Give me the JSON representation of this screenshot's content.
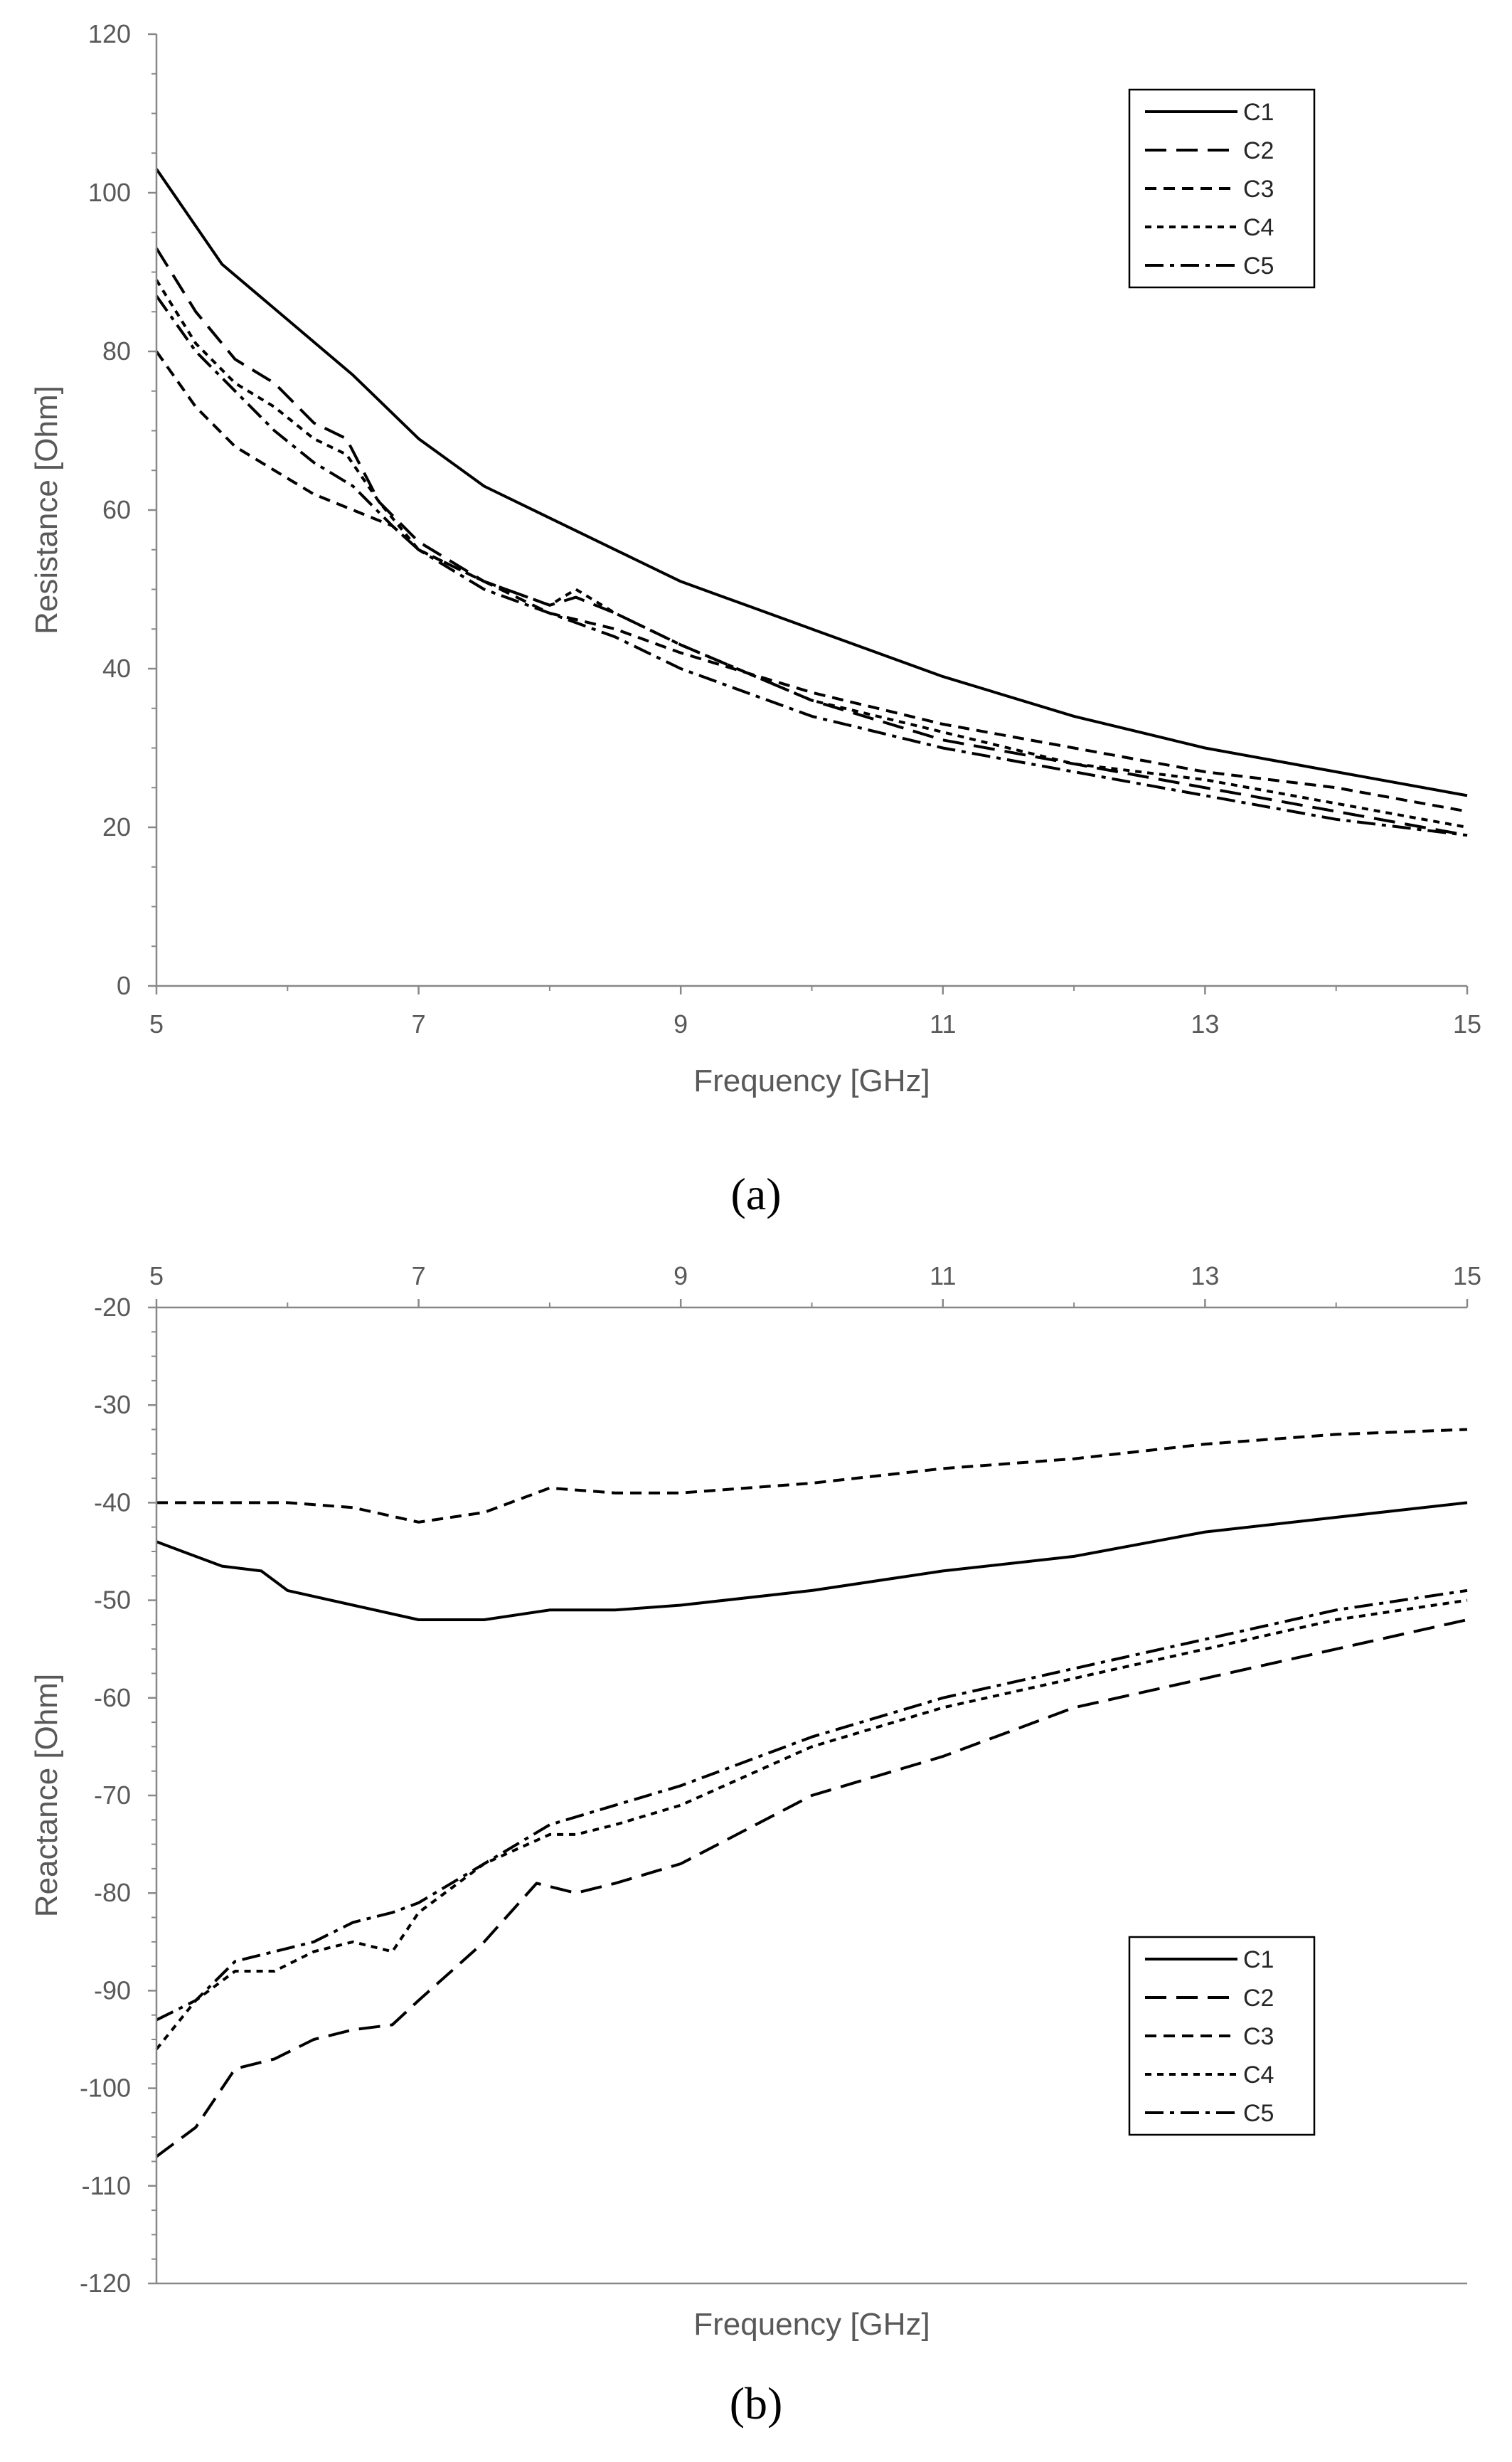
{
  "chart_data": [
    {
      "type": "line",
      "panel_label": "a",
      "title": "",
      "xlabel": "Frequency [GHz]",
      "ylabel": "Resistance [Ohm]",
      "xlim": [
        5,
        15
      ],
      "ylim": [
        0,
        120
      ],
      "xticks": [
        5,
        7,
        9,
        11,
        13,
        15
      ],
      "yticks": [
        0,
        20,
        40,
        60,
        80,
        100,
        120
      ],
      "x_axis_position": "bottom",
      "grid": false,
      "legend_position": "top-right",
      "series": [
        {
          "name": "C1",
          "dash": "solid",
          "x": [
            5,
            5.5,
            6,
            6.5,
            7,
            7.5,
            8,
            8.5,
            9,
            9.5,
            10,
            11,
            12,
            13,
            14,
            15
          ],
          "y": [
            103,
            91,
            84,
            77,
            69,
            63,
            59,
            55,
            51,
            48,
            45,
            39,
            34,
            30,
            27,
            24
          ]
        },
        {
          "name": "C2",
          "dash": "long",
          "x": [
            5,
            5.3,
            5.6,
            5.9,
            6.2,
            6.45,
            6.7,
            7,
            7.5,
            8,
            8.2,
            8.5,
            9,
            10,
            11,
            12,
            13,
            14,
            15
          ],
          "y": [
            93,
            85,
            79,
            76,
            71,
            69,
            61,
            56,
            51,
            48,
            49,
            47,
            43,
            36,
            31,
            28,
            25,
            22,
            19
          ]
        },
        {
          "name": "C3",
          "dash": "short",
          "x": [
            5,
            5.3,
            5.6,
            5.9,
            6.2,
            6.5,
            6.8,
            7,
            7.5,
            8,
            8.5,
            9,
            10,
            11,
            12,
            13,
            14,
            15
          ],
          "y": [
            80,
            73,
            68,
            65,
            62,
            60,
            58,
            55,
            51,
            47,
            45,
            42,
            37,
            33,
            30,
            27,
            25,
            22
          ]
        },
        {
          "name": "C4",
          "dash": "dot",
          "x": [
            5,
            5.3,
            5.6,
            5.9,
            6.2,
            6.45,
            6.7,
            7,
            7.5,
            8,
            8.2,
            8.5,
            9,
            10,
            11,
            12,
            13,
            14,
            15
          ],
          "y": [
            89,
            81,
            76,
            73,
            69,
            67,
            61,
            55,
            51,
            48,
            50,
            47,
            43,
            36,
            32,
            28,
            26,
            23,
            20
          ]
        },
        {
          "name": "C5",
          "dash": "dashdot",
          "x": [
            5,
            5.3,
            5.6,
            5.9,
            6.2,
            6.5,
            6.8,
            7,
            7.5,
            8,
            8.5,
            9,
            10,
            11,
            12,
            13,
            14,
            15
          ],
          "y": [
            87,
            80,
            75,
            70,
            66,
            63,
            58,
            55,
            50,
            47,
            44,
            40,
            34,
            30,
            27,
            24,
            21,
            19
          ]
        }
      ]
    },
    {
      "type": "line",
      "panel_label": "b",
      "title": "",
      "xlabel": "Frequency [GHz]",
      "ylabel": "Reactance [Ohm]",
      "xlim": [
        5,
        15
      ],
      "ylim": [
        -120,
        -20
      ],
      "xticks": [
        5,
        7,
        9,
        11,
        13,
        15
      ],
      "yticks": [
        -120,
        -110,
        -100,
        -90,
        -80,
        -70,
        -60,
        -50,
        -40,
        -30,
        -20
      ],
      "x_axis_position": "top",
      "grid": false,
      "legend_position": "bottom-right",
      "series": [
        {
          "name": "C1",
          "dash": "solid",
          "x": [
            5,
            5.5,
            5.8,
            6,
            6.5,
            7,
            7.5,
            8,
            8.5,
            9,
            10,
            11,
            12,
            13,
            14,
            15
          ],
          "y": [
            -44,
            -46.5,
            -47,
            -49,
            -50.5,
            -52,
            -52,
            -51,
            -51,
            -50.5,
            -49,
            -47,
            -45.5,
            -43,
            -41.5,
            -40
          ]
        },
        {
          "name": "C2",
          "dash": "long",
          "x": [
            5,
            5.3,
            5.6,
            5.9,
            6.2,
            6.5,
            6.8,
            7,
            7.5,
            7.9,
            8.2,
            8.5,
            9,
            10,
            11,
            12,
            13,
            14,
            15
          ],
          "y": [
            -107,
            -104,
            -98,
            -97,
            -95,
            -94,
            -93.5,
            -91,
            -85,
            -79,
            -80,
            -79,
            -77,
            -70,
            -66,
            -61,
            -58,
            -55,
            -52
          ]
        },
        {
          "name": "C3",
          "dash": "short",
          "x": [
            5,
            5.5,
            6,
            6.5,
            7,
            7.5,
            8,
            8.5,
            9,
            10,
            11,
            12,
            13,
            14,
            15
          ],
          "y": [
            -40,
            -40,
            -40,
            -40.5,
            -42,
            -41,
            -38.5,
            -39,
            -39,
            -38,
            -36.5,
            -35.5,
            -34,
            -33,
            -32.5
          ]
        },
        {
          "name": "C4",
          "dash": "dot",
          "x": [
            5,
            5.3,
            5.6,
            5.9,
            6.2,
            6.5,
            6.8,
            7,
            7.5,
            8,
            8.2,
            8.5,
            9,
            10,
            11,
            12,
            13,
            14,
            15
          ],
          "y": [
            -96,
            -91,
            -88,
            -88,
            -86,
            -85,
            -86,
            -82,
            -77,
            -74,
            -74,
            -73,
            -71,
            -65,
            -61,
            -58,
            -55,
            -52,
            -50
          ]
        },
        {
          "name": "C5",
          "dash": "dashdot",
          "x": [
            5,
            5.3,
            5.6,
            5.9,
            6.2,
            6.5,
            6.8,
            7,
            7.5,
            8,
            8.5,
            9,
            10,
            11,
            12,
            13,
            14,
            15
          ],
          "y": [
            -93,
            -91,
            -87,
            -86,
            -85,
            -83,
            -82,
            -81,
            -77,
            -73,
            -71,
            -69,
            -64,
            -60,
            -57,
            -54,
            -51,
            -49
          ]
        }
      ]
    }
  ],
  "panels": {
    "a": {
      "caption": "(a)",
      "legend": [
        "C1",
        "C2",
        "C3",
        "C4",
        "C5"
      ]
    },
    "b": {
      "caption": "(b)",
      "legend": [
        "C1",
        "C2",
        "C3",
        "C4",
        "C5"
      ]
    }
  }
}
